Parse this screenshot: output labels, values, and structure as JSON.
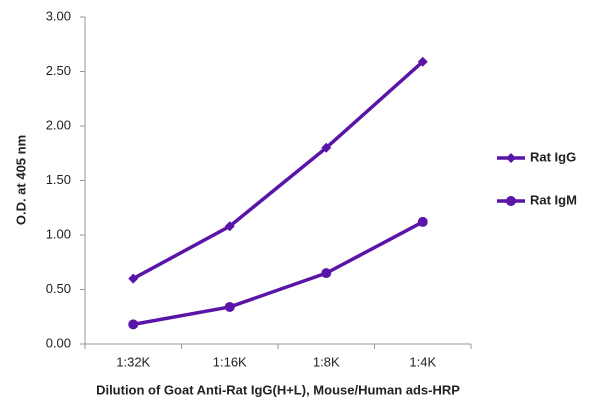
{
  "chart_data": {
    "type": "line",
    "x_label": "Dilution of Goat Anti-Rat IgG(H+L), Mouse/Human ads-HRP",
    "y_label": "O.D. at 405 nm",
    "categories": [
      "1:32K",
      "1:16K",
      "1:8K",
      "1:4K"
    ],
    "series": [
      {
        "name": "Rat IgG",
        "color": "#5a14a8",
        "marker": "diamond",
        "values": [
          0.6,
          1.08,
          1.8,
          2.59
        ]
      },
      {
        "name": "Rat IgM",
        "color": "#5a14a8",
        "marker": "circle",
        "values": [
          0.18,
          0.34,
          0.65,
          1.12
        ]
      }
    ],
    "ylim": [
      0,
      3
    ],
    "yticks": [
      {
        "value": 0,
        "label": "0.00"
      },
      {
        "value": 0.5,
        "label": "0.50"
      },
      {
        "value": 1,
        "label": "1.00"
      },
      {
        "value": 1.5,
        "label": "1.50"
      },
      {
        "value": 2,
        "label": "2.00"
      },
      {
        "value": 2.5,
        "label": "2.50"
      },
      {
        "value": 3,
        "label": "3.00"
      }
    ],
    "grid": false,
    "legend": "right"
  }
}
